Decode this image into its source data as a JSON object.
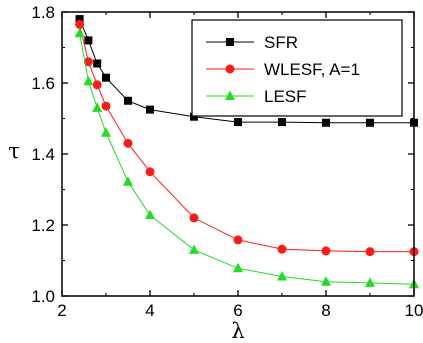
{
  "chart_data": {
    "type": "line",
    "xlabel": "λ",
    "ylabel": "τ",
    "xlim": [
      2,
      10
    ],
    "ylim": [
      1.0,
      1.8
    ],
    "xticks": [
      2,
      4,
      6,
      8,
      10
    ],
    "yticks": [
      1.0,
      1.2,
      1.4,
      1.6,
      1.8
    ],
    "xtick_labels": [
      "2",
      "4",
      "6",
      "8",
      "10"
    ],
    "ytick_labels": [
      "1.0",
      "1.2",
      "1.4",
      "1.6",
      "1.8"
    ],
    "legend_position": "top-right",
    "grid": false,
    "series": [
      {
        "name": "SFR",
        "marker": "square",
        "color": "#000000",
        "x": [
          2.4,
          2.6,
          2.8,
          3.0,
          3.5,
          4,
          5,
          6,
          7,
          8,
          9,
          10
        ],
        "y": [
          1.78,
          1.72,
          1.655,
          1.615,
          1.55,
          1.525,
          1.505,
          1.49,
          1.49,
          1.488,
          1.488,
          1.488
        ]
      },
      {
        "name": "WLESF, A=1",
        "marker": "circle",
        "color": "#ff1a1a",
        "x": [
          2.4,
          2.6,
          2.8,
          3.0,
          3.5,
          4,
          5,
          6,
          7,
          8,
          9,
          10
        ],
        "y": [
          1.765,
          1.66,
          1.595,
          1.535,
          1.43,
          1.35,
          1.22,
          1.158,
          1.132,
          1.127,
          1.125,
          1.125
        ]
      },
      {
        "name": "LESF",
        "marker": "triangle",
        "color": "#22dd22",
        "x": [
          2.4,
          2.6,
          2.8,
          3.0,
          3.5,
          4,
          5,
          6,
          7,
          8,
          9,
          10
        ],
        "y": [
          1.74,
          1.605,
          1.53,
          1.46,
          1.322,
          1.228,
          1.13,
          1.078,
          1.055,
          1.04,
          1.037,
          1.033
        ]
      }
    ]
  }
}
